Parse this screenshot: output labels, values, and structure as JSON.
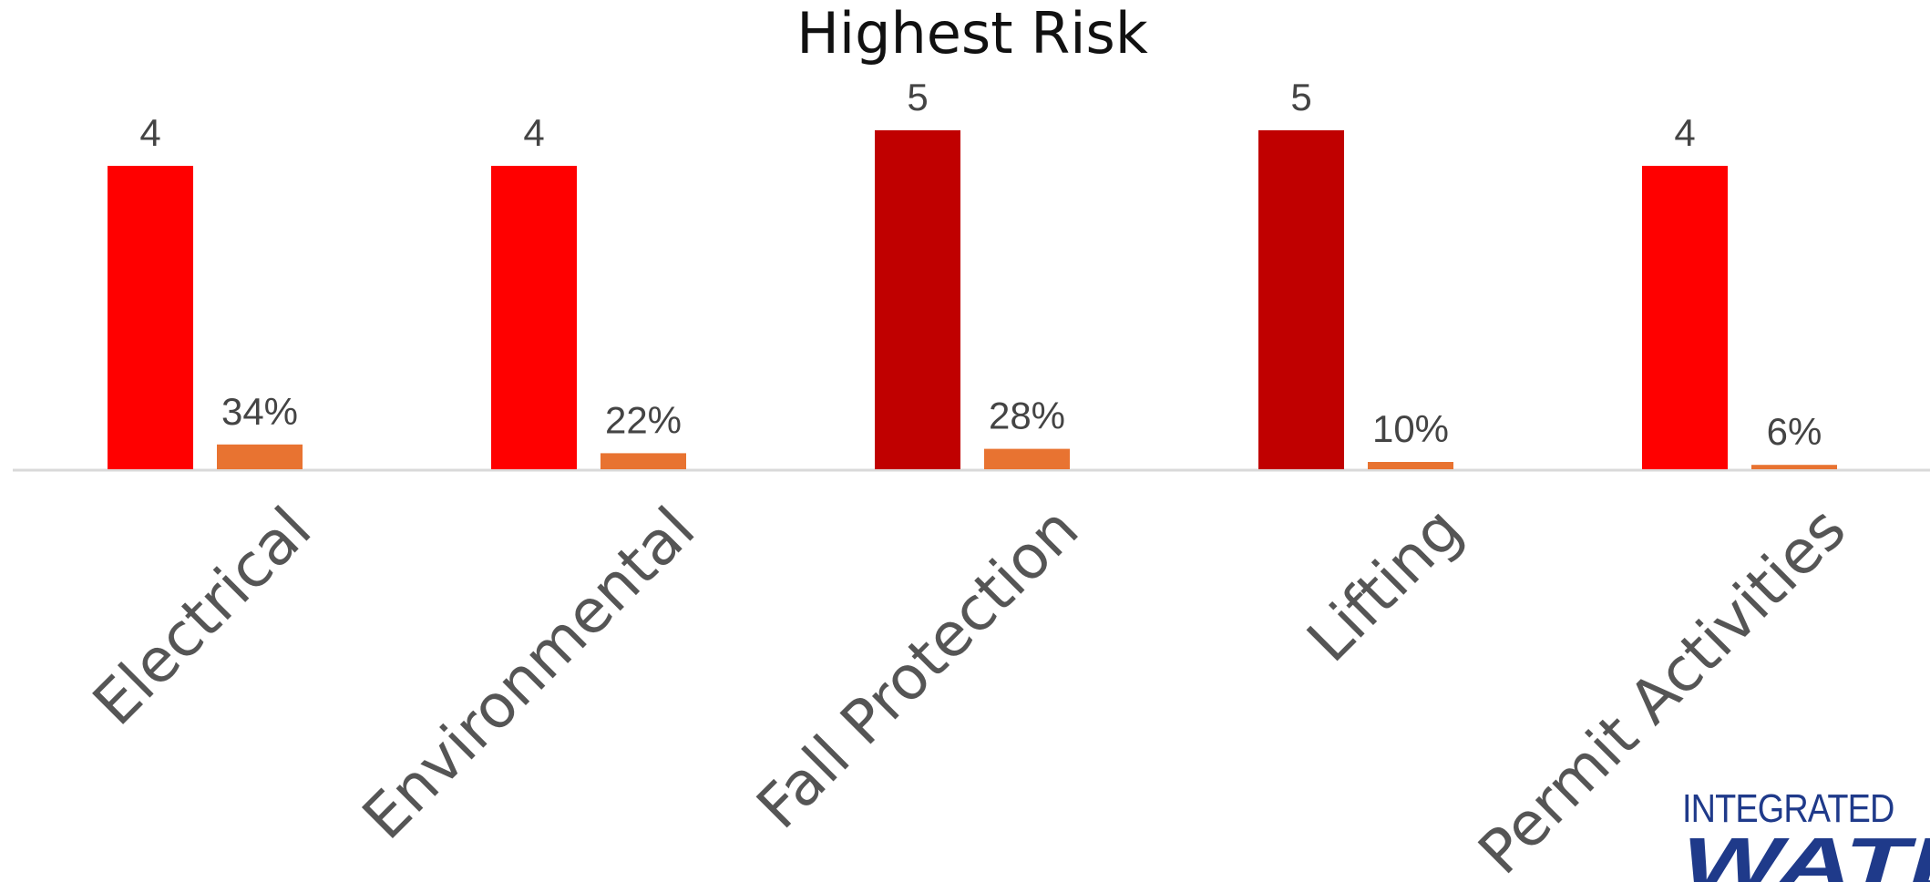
{
  "chart_data": {
    "type": "bar",
    "title": "Highest Risk",
    "categories": [
      "Electrical",
      "Environmental",
      "Fall Protection",
      "Lifting",
      "Permit Activities"
    ],
    "series": [
      {
        "values": [
          4,
          4,
          5,
          5,
          4
        ],
        "labels": [
          "4",
          "4",
          "5",
          "5",
          "4"
        ],
        "colors": [
          "#ff0000",
          "#ff0000",
          "#c00000",
          "#c00000",
          "#ff0000"
        ]
      },
      {
        "values": [
          0.34,
          0.22,
          0.28,
          0.1,
          0.06
        ],
        "labels": [
          "34%",
          "22%",
          "28%",
          "10%",
          "6%"
        ],
        "colors": [
          "#e87331",
          "#e87331",
          "#e87331",
          "#e87331",
          "#e87331"
        ]
      }
    ],
    "xlabel": "",
    "ylabel": "",
    "grid": false,
    "legend": "none"
  },
  "logo": {
    "line1": "INTEGRATED",
    "line2": "WATER"
  }
}
